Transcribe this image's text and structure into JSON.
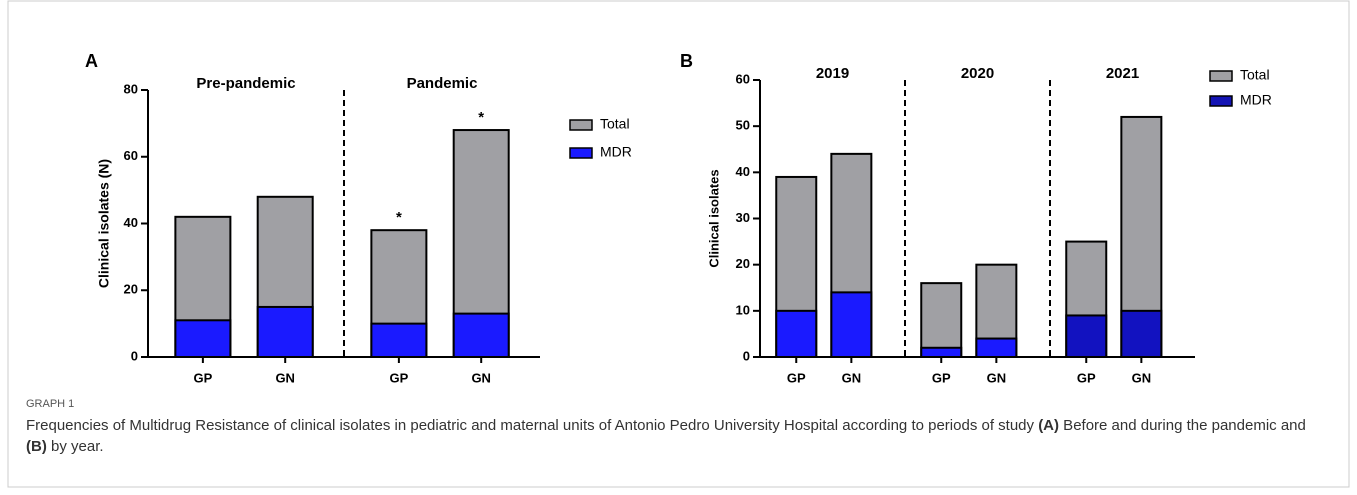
{
  "chart_data": [
    {
      "type": "bar",
      "panel": "A",
      "y_label": "Clinical isolates (N)",
      "groups": [
        "Pre-pandemic",
        "Pandemic"
      ],
      "categories": [
        "GP",
        "GN",
        "GP",
        "GN"
      ],
      "series": [
        {
          "name": "Total",
          "color": "#a0a0a4",
          "values": [
            42,
            48,
            38,
            68
          ]
        },
        {
          "name": "MDR",
          "color": "#1a1aff",
          "values": [
            11,
            15,
            10,
            13
          ]
        }
      ],
      "annotations": [
        {
          "text": "*",
          "series": 0,
          "index": 2
        },
        {
          "text": "*",
          "series": 0,
          "index": 3
        }
      ],
      "ylim": [
        0,
        80
      ],
      "yticks": [
        0,
        20,
        40,
        60,
        80
      ],
      "legend": "right"
    },
    {
      "type": "bar",
      "panel": "B",
      "y_label": "Clinical isolates",
      "groups": [
        "2019",
        "2020",
        "2021"
      ],
      "categories": [
        "GP",
        "GN",
        "GP",
        "GN",
        "GP",
        "GN"
      ],
      "series": [
        {
          "name": "Total",
          "color": "#a0a0a4",
          "values": [
            39,
            44,
            16,
            20,
            25,
            52
          ]
        },
        {
          "name": "MDR",
          "color": "#1414b4",
          "colors": [
            "#1a1aff",
            "#1a1aff",
            "#1a1aff",
            "#1a1aff",
            "#1212c0",
            "#1212c0"
          ],
          "values": [
            10,
            14,
            2,
            4,
            9,
            10
          ]
        }
      ],
      "ylim": [
        0,
        60
      ],
      "yticks": [
        0,
        10,
        20,
        30,
        40,
        50,
        60
      ],
      "legend": "right"
    }
  ],
  "caption": {
    "label": "GRAPH 1",
    "parts": [
      "Frequencies of Multidrug Resistance of clinical isolates in pediatric and maternal units of Antonio Pedro University Hospital according to periods of study ",
      "(A)",
      " Before and during the pandemic and ",
      "(B)",
      " by year."
    ]
  }
}
